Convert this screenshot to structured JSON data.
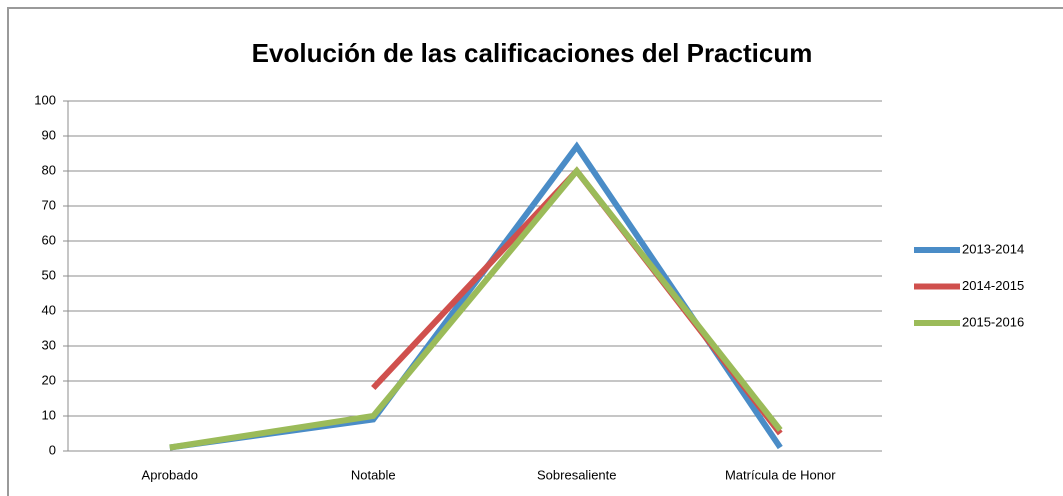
{
  "chart_data": {
    "type": "line",
    "title": "Evolución de las calificaciones del Practicum",
    "categories": [
      "Aprobado",
      "Notable",
      "Sobresaliente",
      "Matrícula de Honor"
    ],
    "series": [
      {
        "name": "2013-2014",
        "color": "#4a8cc7",
        "values": [
          1,
          9,
          87,
          1
        ]
      },
      {
        "name": "2014-2015",
        "color": "#d0504d",
        "values": [
          null,
          18,
          80,
          5
        ]
      },
      {
        "name": "2015-2016",
        "color": "#9bbb59",
        "values": [
          1,
          10,
          80,
          6
        ]
      }
    ],
    "ylim": [
      0,
      100
    ],
    "yticks": [
      0,
      10,
      20,
      30,
      40,
      50,
      60,
      70,
      80,
      90,
      100
    ],
    "grid": true,
    "legend": "right"
  }
}
